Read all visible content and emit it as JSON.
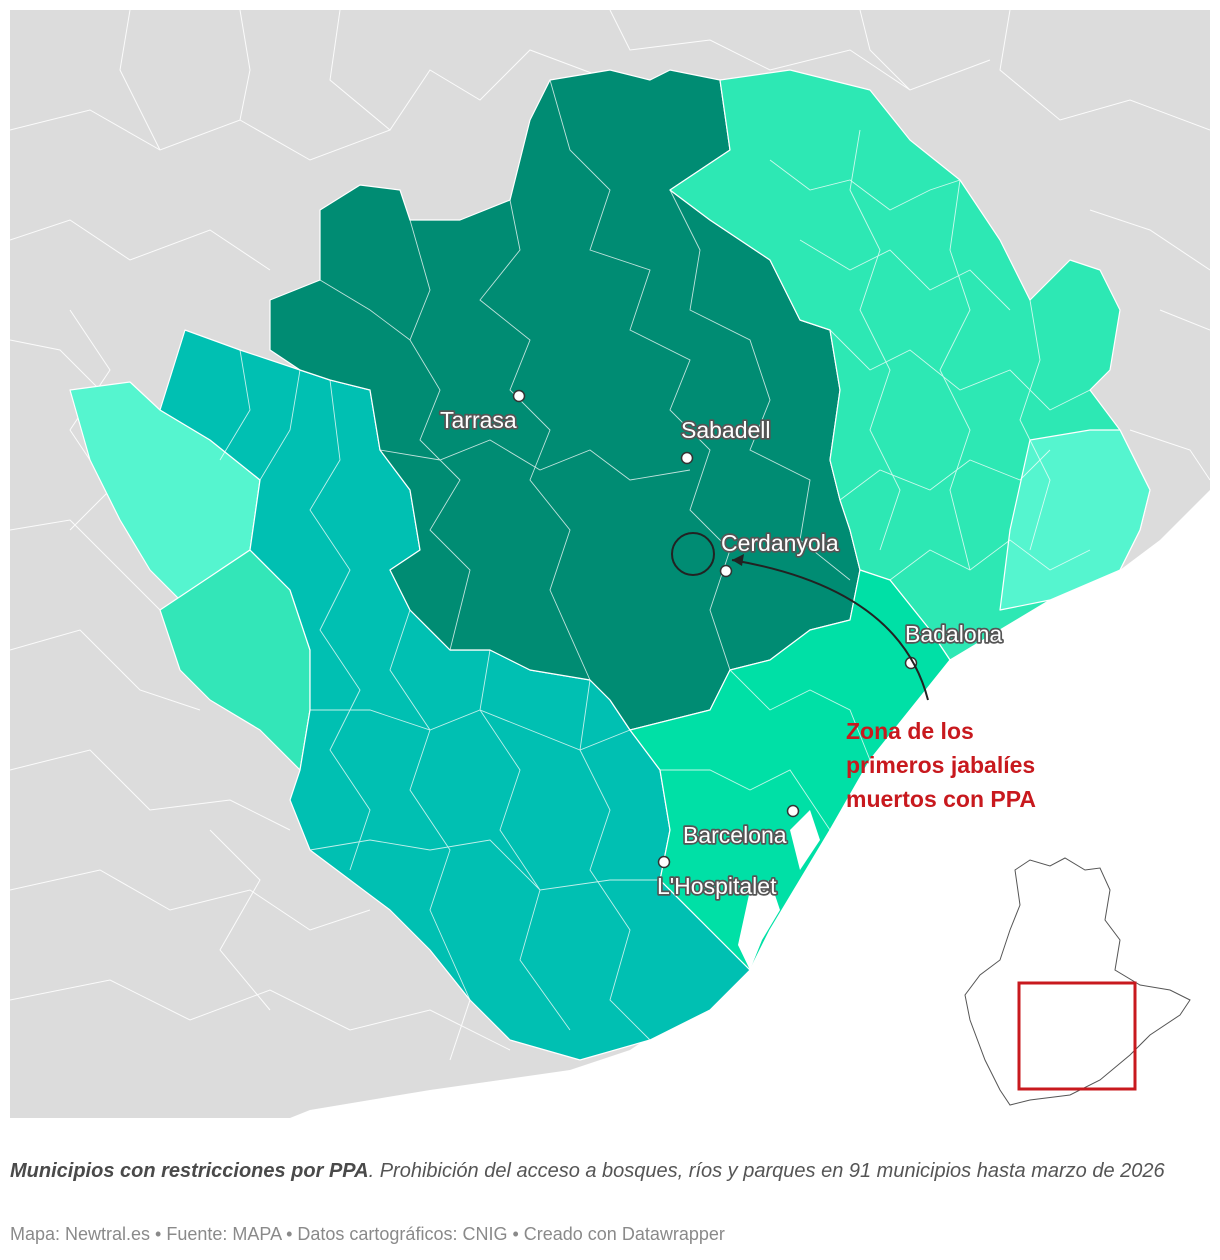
{
  "map": {
    "cities": [
      {
        "id": "tarrasa",
        "name": "Tarrasa"
      },
      {
        "id": "sabadell",
        "name": "Sabadell"
      },
      {
        "id": "cerdanyola",
        "name": "Cerdanyola"
      },
      {
        "id": "badalona",
        "name": "Badalona"
      },
      {
        "id": "barcelona",
        "name": "Barcelona"
      },
      {
        "id": "hospitalet",
        "name": "L'Hospitalet"
      }
    ],
    "annotation": {
      "lines": [
        "Zona de los",
        "primeros jabalíes",
        "muertos con PPA"
      ],
      "color": "#c8191e"
    },
    "colors": {
      "background_land": "#dcdcdc",
      "sea": "#ffffff",
      "zone_core": "#008c73",
      "zone_teal": "#00c0b2",
      "zone_mint": "#2de8b4",
      "zone_bright": "#00e0a6",
      "zone_light": "#55f5cf",
      "zone_soft": "#33e6b8",
      "inset_box": "#c8191e"
    }
  },
  "caption": {
    "title": "Municipios con restricciones por PPA",
    "body": ". Prohibición del acceso a bosques, ríos y parques en 91 municipios hasta marzo de 2026"
  },
  "footer": {
    "text": "Mapa: Newtral.es • Fuente: MAPA • Datos cartográficos: CNIG  • Creado con Datawrapper"
  }
}
